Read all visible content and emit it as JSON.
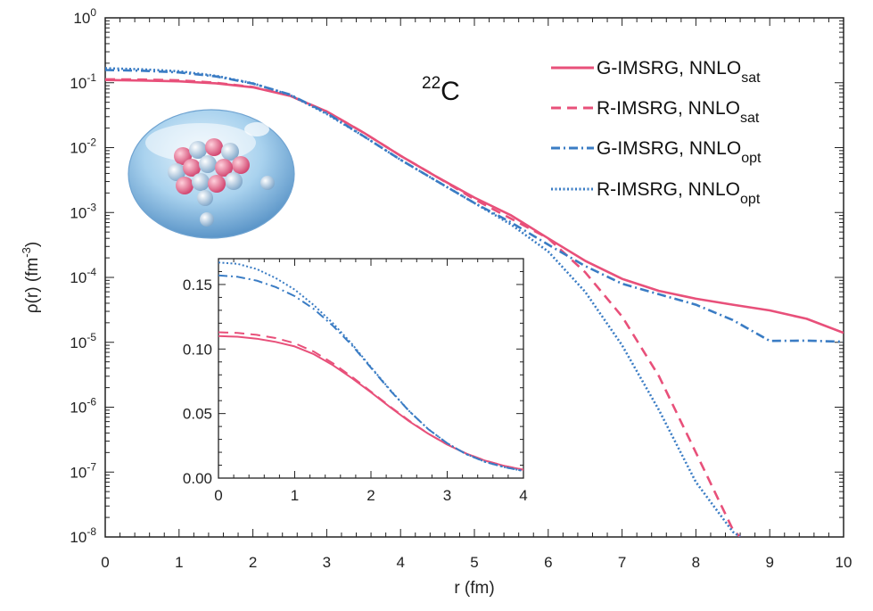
{
  "colors": {
    "sat": "#e8507a",
    "opt": "#3a7cc4"
  },
  "nucleus": {
    "mass": "22",
    "symbol": "C"
  },
  "axes": {
    "ylabel_main": "ρ(r) (fm",
    "ylabel_exp": "-3",
    "ylabel_close": ")"
  },
  "chart_data": [
    {
      "type": "line",
      "xlabel": "r (fm)",
      "ylabel": "ρ(r) (fm^-3)",
      "xlim": [
        0,
        10
      ],
      "ylim": [
        1e-08,
        1
      ],
      "yscale": "log",
      "xticks": [
        "0",
        "1",
        "2",
        "3",
        "4",
        "5",
        "6",
        "7",
        "8",
        "9",
        "10"
      ],
      "yticks": [
        {
          "base": "10",
          "exp": "0",
          "value": 1
        },
        {
          "base": "10",
          "exp": "-1",
          "value": 0.1
        },
        {
          "base": "10",
          "exp": "-2",
          "value": 0.01
        },
        {
          "base": "10",
          "exp": "-3",
          "value": 0.001
        },
        {
          "base": "10",
          "exp": "-4",
          "value": 0.0001
        },
        {
          "base": "10",
          "exp": "-5",
          "value": 1e-05
        },
        {
          "base": "10",
          "exp": "-6",
          "value": 1e-06
        },
        {
          "base": "10",
          "exp": "-7",
          "value": 1e-07
        },
        {
          "base": "10",
          "exp": "-8",
          "value": 1e-08
        }
      ],
      "legend_position": "top-right",
      "series": [
        {
          "name": "G-IMSRG, NNLO",
          "sub": "sat",
          "style": "solid",
          "color_key": "sat",
          "x": [
            0,
            0.5,
            1,
            1.5,
            2,
            2.5,
            3,
            3.5,
            4,
            4.5,
            5,
            5.5,
            6,
            6.5,
            7,
            7.5,
            8,
            8.5,
            9,
            9.5,
            10
          ],
          "y": [
            0.11,
            0.108,
            0.105,
            0.098,
            0.085,
            0.063,
            0.036,
            0.017,
            0.0075,
            0.0035,
            0.0017,
            0.0009,
            0.0004,
            0.00018,
            9.5e-05,
            6.2e-05,
            4.7e-05,
            3.8e-05,
            3.1e-05,
            2.3e-05,
            1.4e-05
          ]
        },
        {
          "name": "R-IMSRG, NNLO",
          "sub": "sat",
          "style": "dashed",
          "color_key": "sat",
          "x": [
            0,
            0.5,
            1,
            1.5,
            2,
            2.5,
            3,
            3.5,
            4,
            4.5,
            5,
            5.5,
            6,
            6.5,
            7,
            7.5,
            8,
            8.5,
            8.6
          ],
          "y": [
            0.113,
            0.112,
            0.109,
            0.1,
            0.086,
            0.063,
            0.036,
            0.017,
            0.0075,
            0.0035,
            0.0016,
            0.0008,
            0.0004,
            0.00012,
            2.5e-05,
            3e-06,
            2e-07,
            1.3e-08,
            1e-08
          ]
        },
        {
          "name": "G-IMSRG, NNLO",
          "sub": "opt",
          "style": "dashdot",
          "color_key": "opt",
          "x": [
            0,
            0.5,
            1,
            1.5,
            2,
            2.5,
            3,
            3.5,
            4,
            4.5,
            5,
            5.5,
            6,
            6.5,
            7,
            7.5,
            8,
            8.5,
            9,
            9.5,
            10
          ],
          "y": [
            0.157,
            0.153,
            0.144,
            0.125,
            0.097,
            0.066,
            0.034,
            0.015,
            0.0065,
            0.003,
            0.0014,
            0.0007,
            0.00032,
            0.00015,
            8e-05,
            5.5e-05,
            3.8e-05,
            2.2e-05,
            1.05e-05,
            1.06e-05,
            1.02e-05
          ]
        },
        {
          "name": "R-IMSRG, NNLO",
          "sub": "opt",
          "style": "dotted",
          "color_key": "opt",
          "x": [
            0,
            0.5,
            1,
            1.5,
            2,
            2.5,
            3,
            3.5,
            4,
            4.5,
            5,
            5.5,
            6,
            6.5,
            7,
            7.5,
            8,
            8.5,
            8.6
          ],
          "y": [
            0.167,
            0.161,
            0.15,
            0.128,
            0.098,
            0.065,
            0.033,
            0.015,
            0.0065,
            0.003,
            0.0014,
            0.00065,
            0.00025,
            6e-05,
            9e-06,
            9e-07,
            7e-08,
            1.2e-08,
            1e-08
          ]
        }
      ]
    },
    {
      "type": "line",
      "role": "inset",
      "xlim": [
        0,
        4
      ],
      "ylim": [
        0,
        0.17
      ],
      "xticks": [
        "0",
        "1",
        "2",
        "3",
        "4"
      ],
      "yticks": [
        {
          "label": "0.00",
          "value": 0
        },
        {
          "label": "0.05",
          "value": 0.05
        },
        {
          "label": "0.10",
          "value": 0.1
        },
        {
          "label": "0.15",
          "value": 0.15
        }
      ],
      "series": [
        {
          "name": "G-IMSRG, NNLO",
          "sub": "sat",
          "style": "solid",
          "color_key": "sat",
          "x": [
            0,
            0.25,
            0.5,
            0.75,
            1,
            1.25,
            1.5,
            1.75,
            2,
            2.25,
            2.5,
            2.75,
            3,
            3.25,
            3.5,
            3.75,
            4
          ],
          "y": [
            0.11,
            0.1095,
            0.108,
            0.1055,
            0.102,
            0.096,
            0.0875,
            0.0775,
            0.0665,
            0.055,
            0.044,
            0.0345,
            0.026,
            0.019,
            0.0135,
            0.0095,
            0.0065
          ]
        },
        {
          "name": "R-IMSRG, NNLO",
          "sub": "sat",
          "style": "dashed",
          "color_key": "sat",
          "x": [
            0,
            0.25,
            0.5,
            0.75,
            1,
            1.25,
            1.5,
            1.75,
            2,
            2.25,
            2.5,
            2.75,
            3,
            3.25,
            3.5,
            3.75,
            4
          ],
          "y": [
            0.113,
            0.1125,
            0.111,
            0.1085,
            0.1045,
            0.098,
            0.089,
            0.0785,
            0.067,
            0.0555,
            0.0445,
            0.0345,
            0.026,
            0.019,
            0.0135,
            0.0095,
            0.0065
          ]
        },
        {
          "name": "G-IMSRG, NNLO",
          "sub": "opt",
          "style": "dashdot",
          "color_key": "opt",
          "x": [
            0,
            0.25,
            0.5,
            0.75,
            1,
            1.25,
            1.5,
            1.75,
            2,
            2.25,
            2.5,
            2.75,
            3,
            3.25,
            3.5,
            3.75,
            4
          ],
          "y": [
            0.157,
            0.156,
            0.153,
            0.148,
            0.141,
            0.131,
            0.118,
            0.103,
            0.0855,
            0.068,
            0.052,
            0.038,
            0.027,
            0.0185,
            0.0125,
            0.0085,
            0.0055
          ]
        },
        {
          "name": "R-IMSRG, NNLO",
          "sub": "opt",
          "style": "dotted",
          "color_key": "opt",
          "x": [
            0,
            0.25,
            0.5,
            0.75,
            1,
            1.25,
            1.5,
            1.75,
            2,
            2.25,
            2.5,
            2.75,
            3,
            3.25,
            3.5,
            3.75,
            4
          ],
          "y": [
            0.167,
            0.166,
            0.162,
            0.155,
            0.146,
            0.134,
            0.12,
            0.104,
            0.086,
            0.0685,
            0.052,
            0.038,
            0.027,
            0.0185,
            0.0125,
            0.0085,
            0.0055
          ]
        }
      ]
    }
  ]
}
